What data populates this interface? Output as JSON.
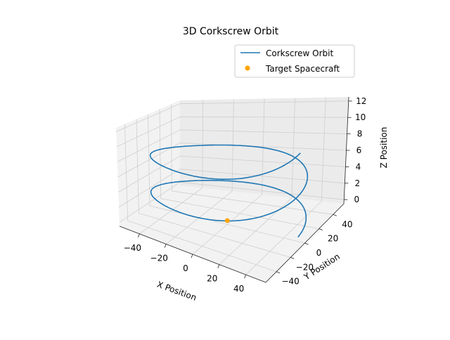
{
  "chart_data": {
    "type": "line",
    "projection": "3d",
    "title": "3D Corkscrew Orbit",
    "xlabel": "X Position",
    "ylabel": "Y Position",
    "zlabel": "Z Position",
    "xlim": [
      -55,
      55
    ],
    "ylim": [
      -55,
      55
    ],
    "zlim": [
      -0.5,
      12.5
    ],
    "xticks": [
      -40,
      -20,
      0,
      20,
      40
    ],
    "yticks": [
      -40,
      -20,
      0,
      20,
      40
    ],
    "zticks": [
      0,
      2,
      4,
      6,
      8,
      10,
      12
    ],
    "grid": true,
    "legend": {
      "position": "top-right",
      "entries": [
        "Corkscrew Orbit",
        "Target Spacecraft"
      ]
    },
    "series": [
      {
        "name": "Corkscrew Orbit",
        "kind": "helix",
        "radius": 50,
        "turns": 2,
        "z_start": 0,
        "z_end": 10,
        "color": "#1f77b4"
      },
      {
        "name": "Target Spacecraft",
        "kind": "scatter",
        "points": [
          {
            "x": 0,
            "y": 0,
            "z": 0
          }
        ],
        "color": "#ffa500"
      }
    ]
  }
}
